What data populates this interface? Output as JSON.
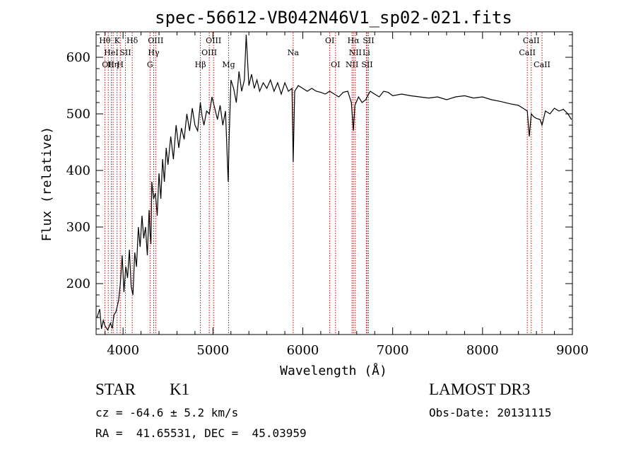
{
  "chart_data": {
    "type": "line",
    "title": "spec-56612-VB042N46V1_sp02-021.fits",
    "xlabel": "Wavelength (Å)",
    "ylabel": "Flux (relative)",
    "xlim": [
      3700,
      9000
    ],
    "ylim": [
      110,
      645
    ],
    "x_ticks": [
      4000,
      5000,
      6000,
      7000,
      8000,
      9000
    ],
    "x_tick_labels": [
      "4000",
      "5000",
      "6000",
      "7000",
      "8000",
      "9000"
    ],
    "y_ticks": [
      200,
      300,
      400,
      500,
      600
    ],
    "y_tick_labels": [
      "200",
      "300",
      "400",
      "500",
      "600"
    ],
    "grid": false,
    "line_color": "#000000",
    "marker_color": "#cc0000",
    "series": [
      {
        "name": "flux",
        "x": [
          3710,
          3740,
          3760,
          3780,
          3800,
          3830,
          3860,
          3880,
          3900,
          3920,
          3950,
          3970,
          3990,
          4010,
          4030,
          4050,
          4070,
          4090,
          4110,
          4130,
          4150,
          4170,
          4190,
          4210,
          4230,
          4250,
          4270,
          4290,
          4300,
          4310,
          4320,
          4340,
          4360,
          4380,
          4400,
          4420,
          4440,
          4460,
          4480,
          4500,
          4530,
          4560,
          4590,
          4620,
          4650,
          4680,
          4710,
          4740,
          4770,
          4800,
          4830,
          4860,
          4880,
          4900,
          4930,
          4960,
          4990,
          5020,
          5050,
          5080,
          5110,
          5140,
          5170,
          5180,
          5200,
          5230,
          5260,
          5290,
          5320,
          5350,
          5370,
          5400,
          5430,
          5460,
          5490,
          5520,
          5560,
          5600,
          5640,
          5680,
          5720,
          5760,
          5800,
          5840,
          5880,
          5893,
          5910,
          5950,
          6000,
          6050,
          6100,
          6150,
          6200,
          6250,
          6300,
          6350,
          6400,
          6450,
          6500,
          6540,
          6563,
          6580,
          6620,
          6660,
          6700,
          6750,
          6800,
          6850,
          6900,
          6950,
          7000,
          7100,
          7200,
          7300,
          7400,
          7500,
          7600,
          7700,
          7800,
          7900,
          8000,
          8100,
          8200,
          8300,
          8400,
          8450,
          8498,
          8520,
          8542,
          8570,
          8600,
          8640,
          8662,
          8700,
          8750,
          8800,
          8850,
          8900,
          8950,
          8990
        ],
        "values": [
          140,
          155,
          120,
          135,
          125,
          118,
          130,
          122,
          145,
          150,
          170,
          200,
          250,
          185,
          230,
          210,
          260,
          195,
          180,
          255,
          230,
          300,
          265,
          320,
          280,
          300,
          250,
          330,
          290,
          270,
          380,
          350,
          360,
          320,
          395,
          350,
          420,
          380,
          440,
          410,
          460,
          420,
          480,
          440,
          475,
          455,
          500,
          470,
          510,
          480,
          470,
          520,
          495,
          480,
          505,
          500,
          530,
          510,
          490,
          515,
          480,
          505,
          380,
          455,
          560,
          545,
          520,
          575,
          540,
          560,
          640,
          550,
          570,
          545,
          560,
          540,
          555,
          545,
          560,
          540,
          555,
          535,
          555,
          540,
          545,
          415,
          540,
          550,
          545,
          540,
          545,
          540,
          538,
          535,
          540,
          535,
          530,
          538,
          540,
          520,
          470,
          515,
          530,
          520,
          525,
          540,
          535,
          530,
          540,
          538,
          532,
          535,
          532,
          530,
          528,
          530,
          525,
          530,
          532,
          528,
          530,
          525,
          522,
          518,
          515,
          510,
          505,
          460,
          500,
          495,
          492,
          490,
          480,
          505,
          500,
          510,
          505,
          508,
          500,
          490
        ]
      }
    ],
    "lines": [
      {
        "x": 3797,
        "label": "Hθ",
        "row": 0
      },
      {
        "x": 3835,
        "label": "OII",
        "row": 2
      },
      {
        "x": 3869,
        "label": "HeI",
        "row": 1
      },
      {
        "x": 3889,
        "label": "Hη",
        "row": 2
      },
      {
        "x": 3934,
        "label": "K",
        "row": 0
      },
      {
        "x": 3969,
        "label": "H",
        "row": 2
      },
      {
        "x": 4026,
        "label": "SII",
        "row": 1
      },
      {
        "x": 4102,
        "label": "Hδ",
        "row": 0
      },
      {
        "x": 4300,
        "label": "G",
        "row": 2
      },
      {
        "x": 4341,
        "label": "Hγ",
        "row": 1
      },
      {
        "x": 4363,
        "label": "OIII",
        "row": 0
      },
      {
        "x": 4861,
        "label": "Hβ",
        "row": 2
      },
      {
        "x": 4959,
        "label": "OIII",
        "row": 1
      },
      {
        "x": 5007,
        "label": "OIII",
        "row": 0
      },
      {
        "x": 5175,
        "label": "Mg",
        "row": 2
      },
      {
        "x": 5893,
        "label": "Na",
        "row": 1
      },
      {
        "x": 6300,
        "label": "OI",
        "row": 0
      },
      {
        "x": 6364,
        "label": "OI",
        "row": 2
      },
      {
        "x": 6548,
        "label": "NII",
        "row": 2
      },
      {
        "x": 6563,
        "label": "Hα",
        "row": 0
      },
      {
        "x": 6584,
        "label": "NII",
        "row": 1
      },
      {
        "x": 6707,
        "label": "Li",
        "row": 1
      },
      {
        "x": 6716,
        "label": "SII",
        "row": 2
      },
      {
        "x": 6731,
        "label": "SII",
        "row": 0
      },
      {
        "x": 8498,
        "label": "CaII",
        "row": 1
      },
      {
        "x": 8542,
        "label": "CaII",
        "row": 0
      },
      {
        "x": 8662,
        "label": "CaII",
        "row": 2
      }
    ]
  },
  "info": {
    "object_class": "STAR",
    "subclass": "K1",
    "survey": "LAMOST DR3",
    "cz": "cz = -64.6 ± 5.2 km/s",
    "obs_date": "Obs-Date: 20131115",
    "coords": "RA =  41.65531, DEC =  45.03959"
  }
}
